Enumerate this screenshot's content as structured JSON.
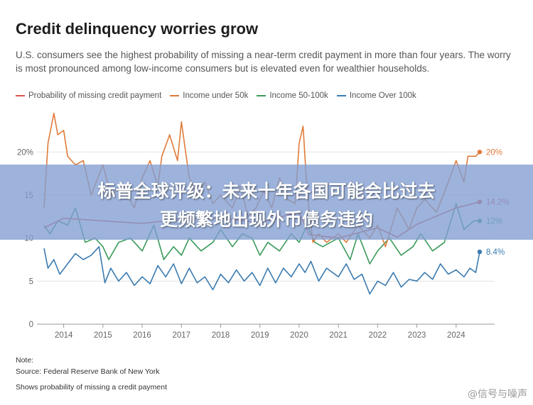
{
  "header": {
    "title": "Credit delinquency worries grow",
    "subtitle": "U.S. consumers see the highest probability of missing a near-term credit payment in more than four years. The worry is most pronounced among low-income consumers but is elevated even for wealthier households."
  },
  "notes": {
    "note_label": "Note:",
    "source": "Source: Federal Reserve Bank of New York",
    "description": "Shows probability of missing a credit payment"
  },
  "overlay": {
    "line1": "标普全球评级：未来十年各国可能会比过去",
    "line2": "更频繁地出现外币债务违约",
    "watermark": "@信号与噪声"
  },
  "chart_data": {
    "type": "line",
    "ylim": [
      0,
      22
    ],
    "yticks": [
      0,
      5,
      10,
      15,
      20
    ],
    "ytick_labels": [
      "0",
      "5",
      "10",
      "15",
      "20%"
    ],
    "x_range": [
      2013.5,
      2024.8
    ],
    "xticks": [
      2014,
      2015,
      2016,
      2017,
      2018,
      2019,
      2020,
      2021,
      2022,
      2023,
      2024
    ],
    "xtick_labels": [
      "2014",
      "2015",
      "2016",
      "2017",
      "2018",
      "2019",
      "2020",
      "2021",
      "2022",
      "2023",
      "2024"
    ],
    "grid": "horizontal",
    "legend_position": "top",
    "series": [
      {
        "name": "Probability of missing credit payment",
        "color": "#d9534f",
        "x": [
          2013.5,
          2014,
          2015,
          2016,
          2017,
          2018,
          2019,
          2020,
          2020.25,
          2021,
          2022,
          2022.5,
          2023,
          2024,
          2024.6
        ],
        "values": [
          11.2,
          12.3,
          12.0,
          11.7,
          12.2,
          12.3,
          11.8,
          13.0,
          10.4,
          10.0,
          11.2,
          10.1,
          11.6,
          13.5,
          14.2
        ]
      },
      {
        "name": "Income under 50k",
        "color": "#e07b39",
        "x": [
          2013.5,
          2013.6,
          2013.75,
          2013.85,
          2014,
          2014.1,
          2014.3,
          2014.5,
          2014.7,
          2015,
          2015.2,
          2015.5,
          2015.8,
          2016,
          2016.2,
          2016.4,
          2016.5,
          2016.7,
          2016.9,
          2017.0,
          2017.2,
          2017.4,
          2017.6,
          2017.8,
          2018,
          2018.3,
          2018.5,
          2018.7,
          2018.9,
          2019.1,
          2019.3,
          2019.5,
          2019.7,
          2019.9,
          2020.0,
          2020.1,
          2020.2,
          2020.35,
          2020.5,
          2020.7,
          2021,
          2021.2,
          2021.5,
          2021.8,
          2022,
          2022.2,
          2022.5,
          2022.8,
          2023,
          2023.2,
          2023.5,
          2023.8,
          2024,
          2024.2,
          2024.3,
          2024.5,
          2024.6
        ],
        "values": [
          13.5,
          21.0,
          24.5,
          22.0,
          22.5,
          19.5,
          18.5,
          19.0,
          15.0,
          18.5,
          15.0,
          16.0,
          13.5,
          17.0,
          19.0,
          16.0,
          19.5,
          22.0,
          19.0,
          23.5,
          17.0,
          15.0,
          16.5,
          14.0,
          15.0,
          13.5,
          16.0,
          12.5,
          13.5,
          15.5,
          13.5,
          17.0,
          14.5,
          14.0,
          21.0,
          23.0,
          15.5,
          9.5,
          10.5,
          9.5,
          10.5,
          9.5,
          11.5,
          10.0,
          11.5,
          9.0,
          13.5,
          11.0,
          13.5,
          14.5,
          13.0,
          16.5,
          19.0,
          16.5,
          19.5,
          19.5,
          20.0
        ]
      },
      {
        "name": "Income 50-100k",
        "color": "#3a9a5b",
        "x": [
          2013.5,
          2013.65,
          2013.85,
          2014.1,
          2014.3,
          2014.55,
          2014.8,
          2015,
          2015.15,
          2015.4,
          2015.7,
          2016,
          2016.3,
          2016.55,
          2016.8,
          2017,
          2017.2,
          2017.5,
          2017.8,
          2018,
          2018.3,
          2018.55,
          2018.8,
          2019,
          2019.2,
          2019.5,
          2019.8,
          2020,
          2020.2,
          2020.4,
          2020.6,
          2021,
          2021.3,
          2021.5,
          2021.8,
          2022,
          2022.3,
          2022.6,
          2022.9,
          2023.1,
          2023.4,
          2023.7,
          2024,
          2024.2,
          2024.45,
          2024.6
        ],
        "values": [
          11.5,
          10.5,
          12.0,
          11.5,
          13.5,
          9.5,
          10.0,
          9.0,
          7.5,
          9.5,
          10.0,
          8.5,
          11.5,
          7.5,
          9.0,
          8.0,
          10.0,
          8.5,
          9.5,
          11.0,
          9.0,
          10.5,
          10.0,
          8.0,
          9.5,
          8.5,
          10.5,
          9.5,
          11.5,
          9.5,
          9.0,
          10.0,
          7.5,
          10.5,
          7.0,
          8.5,
          10.0,
          8.0,
          9.0,
          10.5,
          8.5,
          9.5,
          14.0,
          11.0,
          12.0,
          12.0
        ]
      },
      {
        "name": "Income Over 100k",
        "color": "#3b7bb0",
        "x": [
          2013.5,
          2013.6,
          2013.75,
          2013.9,
          2014.1,
          2014.3,
          2014.5,
          2014.7,
          2014.9,
          2015.05,
          2015.2,
          2015.4,
          2015.6,
          2015.8,
          2016,
          2016.2,
          2016.4,
          2016.6,
          2016.8,
          2017,
          2017.2,
          2017.4,
          2017.6,
          2017.8,
          2018,
          2018.2,
          2018.4,
          2018.6,
          2018.8,
          2019,
          2019.2,
          2019.4,
          2019.6,
          2019.8,
          2020,
          2020.15,
          2020.3,
          2020.5,
          2020.7,
          2021,
          2021.2,
          2021.4,
          2021.6,
          2021.8,
          2022,
          2022.2,
          2022.4,
          2022.6,
          2022.8,
          2023,
          2023.2,
          2023.4,
          2023.6,
          2023.8,
          2024,
          2024.2,
          2024.35,
          2024.5,
          2024.6
        ],
        "values": [
          8.8,
          6.5,
          7.5,
          5.8,
          7.0,
          8.2,
          7.5,
          8.0,
          9.0,
          4.8,
          6.5,
          5.0,
          6.0,
          4.5,
          5.5,
          4.7,
          6.8,
          5.5,
          7.0,
          4.7,
          6.5,
          4.8,
          5.5,
          4.0,
          5.8,
          4.8,
          6.3,
          5.0,
          6.0,
          4.5,
          6.5,
          4.8,
          6.5,
          5.5,
          7.0,
          6.0,
          7.3,
          5.0,
          6.5,
          5.5,
          7.0,
          5.2,
          5.8,
          3.5,
          5.0,
          4.5,
          6.0,
          4.3,
          5.2,
          5.0,
          6.0,
          5.2,
          7.0,
          5.8,
          6.3,
          5.5,
          6.5,
          6.0,
          8.4
        ]
      }
    ],
    "end_labels": [
      {
        "series": 1,
        "text": "20%"
      },
      {
        "series": 0,
        "text": "14.2%"
      },
      {
        "series": 2,
        "text": "12%"
      },
      {
        "series": 3,
        "text": "8.4%"
      }
    ]
  }
}
